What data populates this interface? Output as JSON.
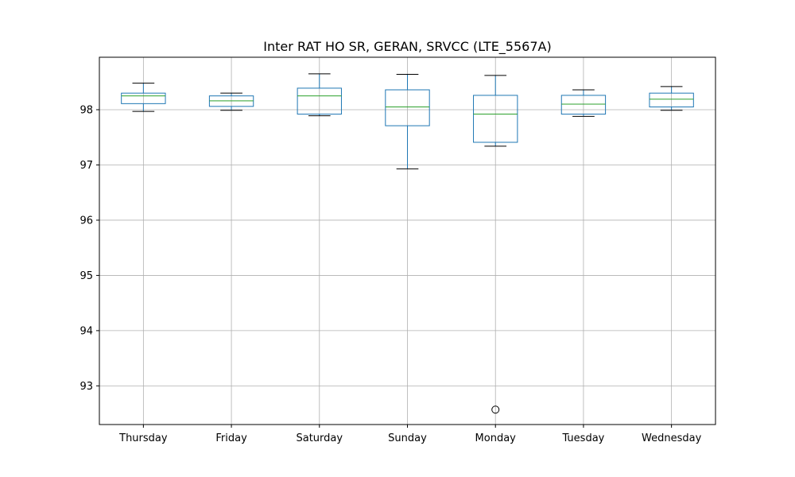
{
  "chart_data": {
    "type": "box",
    "title": "Inter RAT HO SR, GERAN, SRVCC (LTE_5567A)",
    "xlabel": "",
    "ylabel": "",
    "categories": [
      "Thursday",
      "Friday",
      "Saturday",
      "Sunday",
      "Monday",
      "Tuesday",
      "Wednesday"
    ],
    "boxes": [
      {
        "category": "Thursday",
        "whisker_low": 97.97,
        "q1": 98.11,
        "median": 98.25,
        "q3": 98.3,
        "whisker_high": 98.48,
        "outliers": []
      },
      {
        "category": "Friday",
        "whisker_low": 97.99,
        "q1": 98.06,
        "median": 98.16,
        "q3": 98.25,
        "whisker_high": 98.3,
        "outliers": []
      },
      {
        "category": "Saturday",
        "whisker_low": 97.89,
        "q1": 97.92,
        "median": 98.25,
        "q3": 98.39,
        "whisker_high": 98.65,
        "outliers": []
      },
      {
        "category": "Sunday",
        "whisker_low": 96.93,
        "q1": 97.71,
        "median": 98.05,
        "q3": 98.36,
        "whisker_high": 98.64,
        "outliers": []
      },
      {
        "category": "Monday",
        "whisker_low": 97.34,
        "q1": 97.41,
        "median": 97.92,
        "q3": 98.26,
        "whisker_high": 98.62,
        "outliers": [
          92.57
        ]
      },
      {
        "category": "Tuesday",
        "whisker_low": 97.88,
        "q1": 97.92,
        "median": 98.1,
        "q3": 98.26,
        "whisker_high": 98.36,
        "outliers": []
      },
      {
        "category": "Wednesday",
        "whisker_low": 97.99,
        "q1": 98.05,
        "median": 98.19,
        "q3": 98.3,
        "whisker_high": 98.42,
        "outliers": []
      }
    ],
    "yticks": [
      93,
      94,
      95,
      96,
      97,
      98
    ],
    "ylim": [
      92.3,
      98.95
    ],
    "grid": true,
    "legend": "none",
    "colors": {
      "box": "#1f77b4",
      "median": "#2ca02c",
      "whisker": "#000000",
      "grid": "#b0b0b0",
      "outlier": "#000000"
    }
  }
}
